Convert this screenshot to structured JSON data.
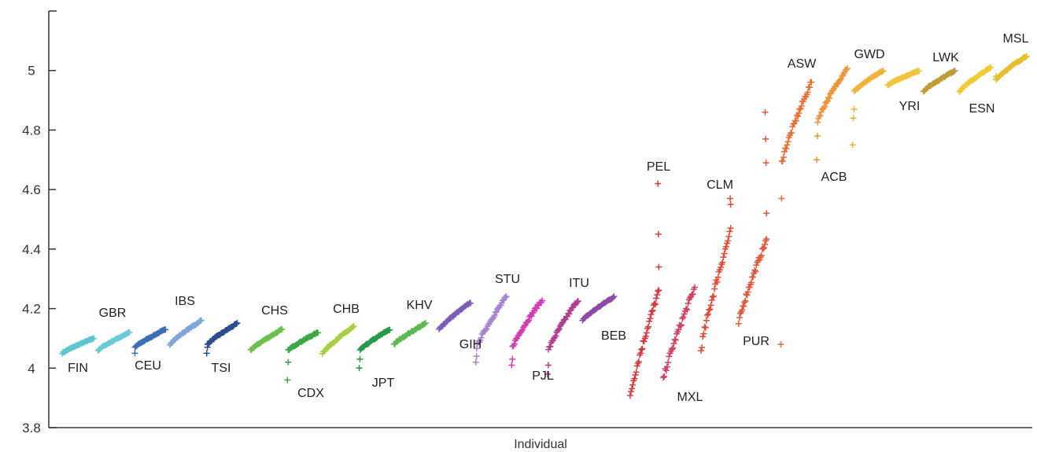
{
  "chart_data": {
    "type": "scatter",
    "title": "",
    "xlabel": "Individual",
    "ylabel": "",
    "ylim": [
      3.8,
      5.2
    ],
    "yticks": [
      3.8,
      4,
      4.2,
      4.4,
      4.6,
      4.8,
      5
    ],
    "ytick_labels": [
      "3.8",
      "4",
      "4.2",
      "4.4",
      "4.6",
      "4.8",
      "5"
    ],
    "grid": false,
    "legend": "none",
    "x_unit": "individual index (sorted within population)",
    "series": [
      {
        "name": "FIN",
        "color": "#5ec4cf",
        "range": [
          1,
          38
        ],
        "ymin": 4.05,
        "ymax": 4.1,
        "outliers": []
      },
      {
        "name": "GBR",
        "color": "#6dc9d6",
        "range": [
          41,
          78
        ],
        "ymin": 4.06,
        "ymax": 4.12,
        "outliers": []
      },
      {
        "name": "CEU",
        "color": "#3a6fb0",
        "range": [
          81,
          118
        ],
        "ymin": 4.07,
        "ymax": 4.13,
        "outliers": [
          4.05
        ]
      },
      {
        "name": "IBS",
        "color": "#7fa6d8",
        "range": [
          121,
          158
        ],
        "ymin": 4.08,
        "ymax": 4.16,
        "outliers": []
      },
      {
        "name": "TSI",
        "color": "#2a4d8c",
        "range": [
          161,
          198
        ],
        "ymin": 4.08,
        "ymax": 4.15,
        "outliers": [
          4.05,
          4.07
        ]
      },
      {
        "name": "CHS",
        "color": "#6cc04a",
        "range": [
          211,
          248
        ],
        "ymin": 4.06,
        "ymax": 4.13,
        "outliers": []
      },
      {
        "name": "CDX",
        "color": "#3aa845",
        "range": [
          251,
          288
        ],
        "ymin": 4.06,
        "ymax": 4.12,
        "outliers": [
          4.02,
          3.96
        ]
      },
      {
        "name": "CHB",
        "color": "#a6d042",
        "range": [
          291,
          328
        ],
        "ymin": 4.05,
        "ymax": 4.14,
        "outliers": []
      },
      {
        "name": "JPT",
        "color": "#249a4a",
        "range": [
          331,
          368
        ],
        "ymin": 4.06,
        "ymax": 4.13,
        "outliers": [
          4.03,
          4.0
        ]
      },
      {
        "name": "KHV",
        "color": "#5cba52",
        "range": [
          371,
          408
        ],
        "ymin": 4.08,
        "ymax": 4.15,
        "outliers": []
      },
      {
        "name": "GIH",
        "color": "#7b5cb6",
        "range": [
          421,
          458
        ],
        "ymin": 4.13,
        "ymax": 4.22,
        "outliers": []
      },
      {
        "name": "STU",
        "color": "#a883cf",
        "range": [
          461,
          498
        ],
        "ymin": 4.07,
        "ymax": 4.24,
        "outliers": [
          4.04,
          4.02
        ]
      },
      {
        "name": "PJL",
        "color": "#d43db3",
        "range": [
          501,
          538
        ],
        "ymin": 4.07,
        "ymax": 4.23,
        "outliers": [
          4.03,
          4.01
        ]
      },
      {
        "name": "ITU",
        "color": "#b03e8e",
        "range": [
          541,
          578
        ],
        "ymin": 4.06,
        "ymax": 4.23,
        "outliers": [
          4.01,
          3.98
        ]
      },
      {
        "name": "BEB",
        "color": "#8e4aa6",
        "range": [
          581,
          618
        ],
        "ymin": 4.16,
        "ymax": 4.24,
        "outliers": []
      },
      {
        "name": "PEL",
        "color": "#d63b3f",
        "range": [
          631,
          668
        ],
        "ymin": 3.9,
        "ymax": 4.26,
        "outliers": [
          4.34,
          4.45,
          4.62
        ]
      },
      {
        "name": "MXL",
        "color": "#d04060",
        "range": [
          671,
          708
        ],
        "ymin": 3.96,
        "ymax": 4.27,
        "outliers": []
      },
      {
        "name": "CLM",
        "color": "#e34a35",
        "range": [
          711,
          748
        ],
        "ymin": 4.06,
        "ymax": 4.46,
        "outliers": [
          4.55,
          4.57
        ]
      },
      {
        "name": "PUR",
        "color": "#e0593a",
        "range": [
          751,
          788
        ],
        "ymin": 4.15,
        "ymax": 4.43,
        "outliers": [
          4.52,
          4.69,
          4.77,
          4.86
        ]
      },
      {
        "name": "ASW",
        "color": "#ea6f35",
        "range": [
          801,
          838
        ],
        "ymin": 4.69,
        "ymax": 4.96,
        "outliers": [
          4.08,
          4.57
        ]
      },
      {
        "name": "ACB",
        "color": "#f0943a",
        "range": [
          841,
          878
        ],
        "ymin": 4.83,
        "ymax": 5.01,
        "outliers": [
          4.7,
          4.78
        ]
      },
      {
        "name": "GWD",
        "color": "#f0b23a",
        "range": [
          881,
          918
        ],
        "ymin": 4.93,
        "ymax": 5.0,
        "outliers": [
          4.75,
          4.84,
          4.87
        ]
      },
      {
        "name": "YRI",
        "color": "#f2c43a",
        "range": [
          921,
          958
        ],
        "ymin": 4.95,
        "ymax": 5.0,
        "outliers": []
      },
      {
        "name": "LWK",
        "color": "#c29a3a",
        "range": [
          961,
          998
        ],
        "ymin": 4.93,
        "ymax": 5.0,
        "outliers": []
      },
      {
        "name": "ESN",
        "color": "#f0cb35",
        "range": [
          1001,
          1038
        ],
        "ymin": 4.93,
        "ymax": 5.01,
        "outliers": []
      },
      {
        "name": "MSL",
        "color": "#e6be2e",
        "range": [
          1041,
          1078
        ],
        "ymin": 4.97,
        "ymax": 5.05,
        "outliers": [
          4.98
        ]
      }
    ]
  }
}
